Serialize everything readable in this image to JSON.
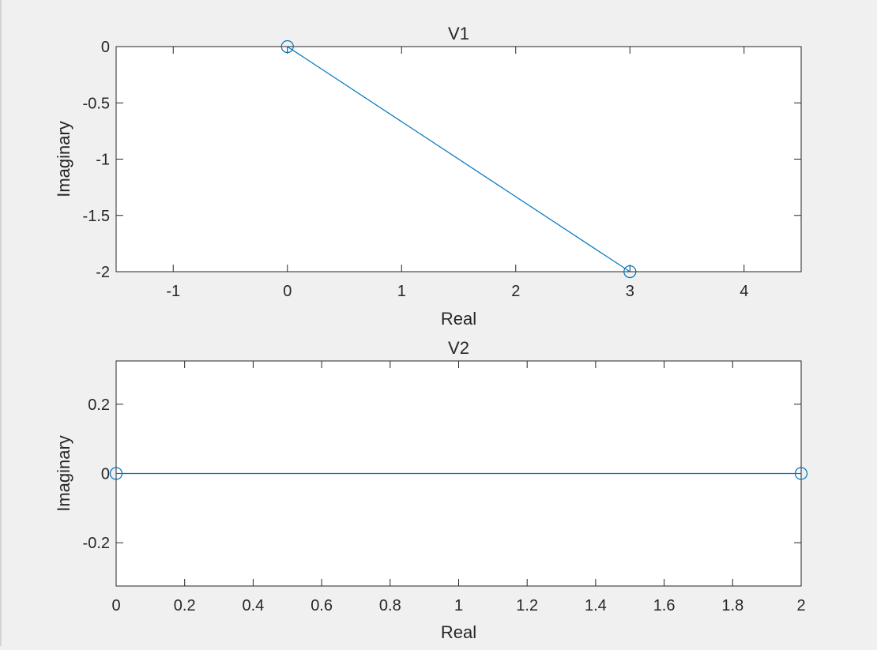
{
  "figure": {
    "background": "#f0f0f0",
    "axes_background": "#ffffff",
    "line_color": "#0072bd",
    "axis_color": "#262626"
  },
  "chart_data": [
    {
      "type": "line",
      "marker": "circle",
      "title": "V1",
      "xlabel": "Real",
      "ylabel": "Imaginary",
      "xlim": [
        -1.5,
        4.5
      ],
      "ylim": [
        -2,
        0
      ],
      "xticks": [
        -1,
        0,
        1,
        2,
        3,
        4
      ],
      "xtick_labels": [
        "-1",
        "0",
        "1",
        "2",
        "3",
        "4"
      ],
      "yticks": [
        0,
        -0.5,
        -1,
        -1.5,
        -2
      ],
      "ytick_labels": [
        "0",
        "-0.5",
        "-1",
        "-1.5",
        "-2"
      ],
      "grid": false,
      "series": [
        {
          "x": [
            0,
            3
          ],
          "y": [
            0,
            -2
          ]
        }
      ]
    },
    {
      "type": "line",
      "marker": "circle",
      "title": "V2",
      "xlabel": "Real",
      "ylabel": "Imaginary",
      "xlim": [
        0,
        2
      ],
      "ylim": [
        -0.325,
        0.325
      ],
      "xticks": [
        0,
        0.2,
        0.4,
        0.6,
        0.8,
        1,
        1.2,
        1.4,
        1.6,
        1.8,
        2
      ],
      "xtick_labels": [
        "0",
        "0.2",
        "0.4",
        "0.6",
        "0.8",
        "1",
        "1.2",
        "1.4",
        "1.6",
        "1.8",
        "2"
      ],
      "yticks": [
        0.2,
        0,
        -0.2
      ],
      "ytick_labels": [
        "0.2",
        "0",
        "-0.2"
      ],
      "grid": false,
      "series": [
        {
          "x": [
            0,
            2
          ],
          "y": [
            0,
            0
          ]
        }
      ]
    }
  ]
}
